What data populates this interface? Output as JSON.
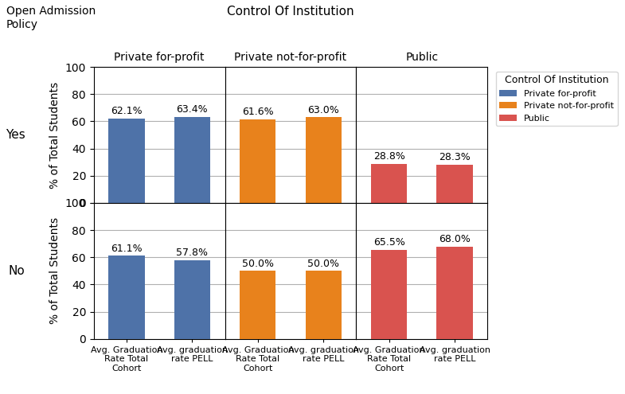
{
  "title": "Control Of Institution",
  "annotations": [
    "Open Admission\nPolicy"
  ],
  "legend": "upper right",
  "legend_title": "Control Of Institution",
  "chart_data": [
    {
      "type": "bar",
      "title": "Private for-profit",
      "ylabel": "% of Total Students",
      "annotations": [
        "Yes"
      ],
      "categories": [
        "Avg. Graduation\nRate Total\nCohort",
        "Avg. graduation\nrate PELL"
      ],
      "series": [
        {
          "name": "Private for-profit",
          "color": "#4E72A8",
          "values": [
            62.1,
            63.4
          ],
          "value_labels": [
            "62.1%",
            "63.4%"
          ]
        }
      ],
      "ylim": [
        0,
        100
      ],
      "yticks": [
        0,
        20,
        40,
        60,
        80,
        100
      ],
      "grid": true,
      "data_labels": true,
      "tick_labels": "y"
    },
    {
      "type": "bar",
      "title": "Private not-for-profit",
      "categories": [
        "Avg. Graduation\nRate Total\nCohort",
        "Avg. graduation\nrate PELL"
      ],
      "series": [
        {
          "name": "Private not-for-profit",
          "color": "#E8821C",
          "values": [
            61.6,
            63.0
          ],
          "value_labels": [
            "61.6%",
            "63.0%"
          ]
        }
      ],
      "ylim": [
        0,
        100
      ],
      "yticks": [
        0,
        20,
        40,
        60,
        80,
        100
      ],
      "grid": true,
      "data_labels": true,
      "tick_labels": false
    },
    {
      "type": "bar",
      "title": "Public",
      "categories": [
        "Avg. Graduation\nRate Total\nCohort",
        "Avg. graduation\nrate PELL"
      ],
      "series": [
        {
          "name": "Public",
          "color": "#D9534F",
          "values": [
            28.8,
            28.3
          ],
          "value_labels": [
            "28.8%",
            "28.3%"
          ]
        }
      ],
      "ylim": [
        0,
        100
      ],
      "yticks": [
        0,
        20,
        40,
        60,
        80,
        100
      ],
      "grid": true,
      "data_labels": true,
      "tick_labels": false
    },
    {
      "type": "bar",
      "ylabel": "% of Total Students",
      "annotations": [
        "No"
      ],
      "categories": [
        "Avg. Graduation\nRate Total\nCohort",
        "Avg. graduation\nrate PELL"
      ],
      "series": [
        {
          "name": "Private for-profit",
          "color": "#4E72A8",
          "values": [
            61.1,
            57.8
          ],
          "value_labels": [
            "61.1%",
            "57.8%"
          ]
        }
      ],
      "ylim": [
        0,
        100
      ],
      "yticks": [
        0,
        20,
        40,
        60,
        80,
        100
      ],
      "grid": true,
      "data_labels": true,
      "tick_labels": true
    },
    {
      "type": "bar",
      "categories": [
        "Avg. Graduation\nRate Total\nCohort",
        "Avg. graduation\nrate PELL"
      ],
      "series": [
        {
          "name": "Private not-for-profit",
          "color": "#E8821C",
          "values": [
            50.0,
            50.0
          ],
          "value_labels": [
            "50.0%",
            "50.0%"
          ]
        }
      ],
      "ylim": [
        0,
        100
      ],
      "yticks": [
        0,
        20,
        40,
        60,
        80,
        100
      ],
      "grid": true,
      "data_labels": true,
      "tick_labels": "x"
    },
    {
      "type": "bar",
      "categories": [
        "Avg. Graduation\nRate Total\nCohort",
        "Avg. graduation\nrate PELL"
      ],
      "series": [
        {
          "name": "Public",
          "color": "#D9534F",
          "values": [
            65.5,
            68.0
          ],
          "value_labels": [
            "65.5%",
            "68.0%"
          ]
        }
      ],
      "ylim": [
        0,
        100
      ],
      "yticks": [
        0,
        20,
        40,
        60,
        80,
        100
      ],
      "grid": true,
      "data_labels": true,
      "tick_labels": "x"
    }
  ]
}
